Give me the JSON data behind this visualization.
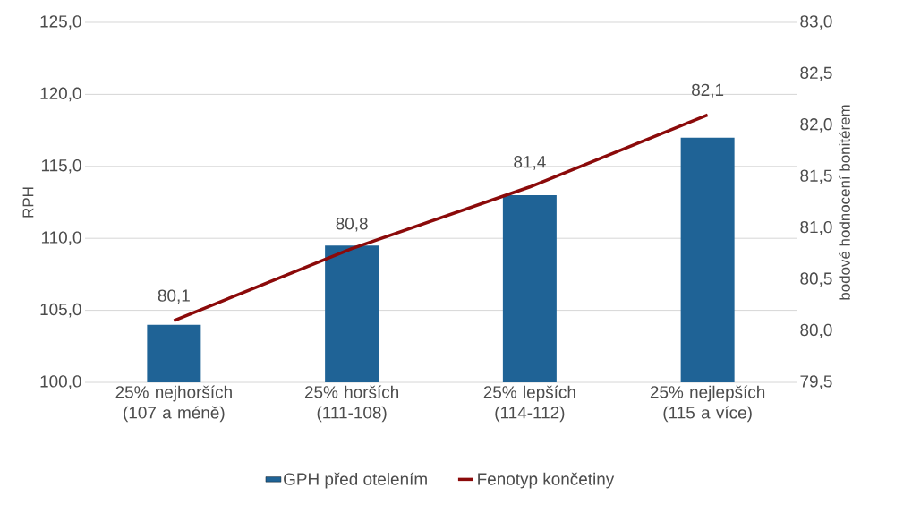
{
  "chart_data": {
    "type": "bar",
    "categories": [
      "25% nejhorších (107 a méně)",
      "25% horších (111-108)",
      "25% lepších (114-112)",
      "25% nejlepších (115 a více)"
    ],
    "series": [
      {
        "name": "GPH před otelením",
        "color": "#1f6396",
        "values": [
          104.0,
          109.5,
          113.0,
          117.0
        ]
      },
      {
        "name": "Fenotyp končetiny",
        "type": "line",
        "axis": "y2",
        "color": "#8b0a0a",
        "values": [
          80.1,
          80.8,
          81.4,
          82.1
        ],
        "value_labels": [
          "80,1",
          "80,8",
          "81,4",
          "82,1"
        ]
      }
    ],
    "ylabel": "RPH",
    "y2label": "bodové hodnocení bonitérem",
    "ylim": [
      100,
      125
    ],
    "yticks": [
      {
        "value": 100,
        "label": "100,0"
      },
      {
        "value": 105,
        "label": "105,0"
      },
      {
        "value": 110,
        "label": "110,0"
      },
      {
        "value": 115,
        "label": "115,0"
      },
      {
        "value": 120,
        "label": "120,0"
      },
      {
        "value": 125,
        "label": "125,0"
      }
    ],
    "y2lim": [
      79.5,
      83.0
    ],
    "y2ticks": [
      {
        "value": 79.5,
        "label": "79,5"
      },
      {
        "value": 80.0,
        "label": "80,0"
      },
      {
        "value": 80.5,
        "label": "80,5"
      },
      {
        "value": 81.0,
        "label": "81,0"
      },
      {
        "value": 81.5,
        "label": "81,5"
      },
      {
        "value": 82.0,
        "label": "82,0"
      },
      {
        "value": 82.5,
        "label": "82,5"
      },
      {
        "value": 83.0,
        "label": "83,0"
      }
    ],
    "grid": "y",
    "legend": "bottom"
  }
}
